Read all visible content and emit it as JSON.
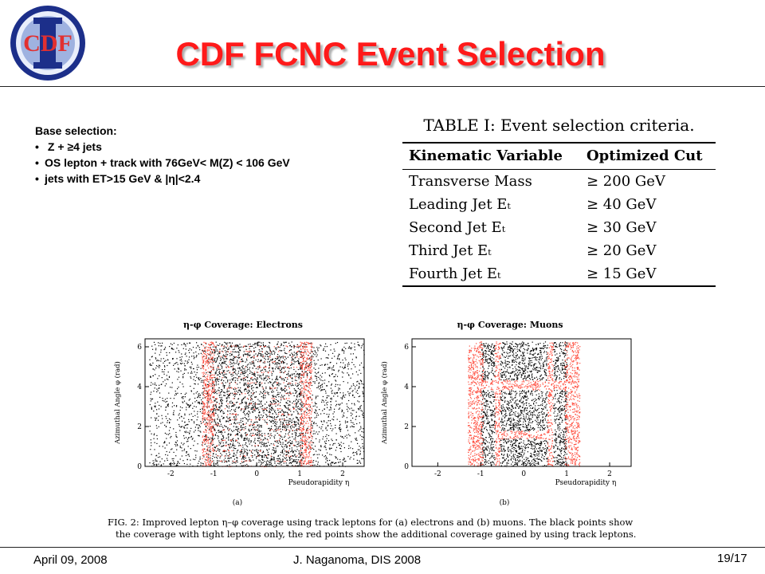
{
  "logo": {
    "text": "CDF"
  },
  "title": "CDF FCNC Event Selection",
  "base_selection": {
    "heading": "Base selection:",
    "items": [
      " Z +  ≥4 jets",
      "OS lepton + track with 76GeV< M(Z) < 106 GeV",
      "jets with ET>15 GeV & |η|<2.4"
    ]
  },
  "table": {
    "caption": "TABLE I: Event selection criteria.",
    "headers": [
      "Kinematic Variable",
      "Optimized Cut"
    ],
    "rows": [
      [
        "Transverse Mass",
        "≥ 200 GeV"
      ],
      [
        "Leading Jet Eₜ",
        "≥ 40 GeV"
      ],
      [
        "Second Jet Eₜ",
        "≥ 30 GeV"
      ],
      [
        "Third Jet Eₜ",
        "≥ 20 GeV"
      ],
      [
        "Fourth Jet Eₜ",
        "≥ 15 GeV"
      ]
    ]
  },
  "plots": {
    "electrons": {
      "title": "η-φ Coverage: Electrons",
      "ylabel": "Azimuthal Angle φ (rad)",
      "xlabel": "Pseudorapidity η",
      "sublabel": "(a)"
    },
    "muons": {
      "title": "η-φ Coverage: Muons",
      "ylabel": "Azimuthal Angle φ (rad)",
      "xlabel": "Pseudorapidity η",
      "sublabel": "(b)"
    },
    "xticks": [
      "-2",
      "-1",
      "0",
      "1",
      "2"
    ],
    "yticks": [
      "0",
      "2",
      "4",
      "6"
    ],
    "colors": {
      "tight": "#000000",
      "track": "#ff4a3a"
    }
  },
  "figure_caption": {
    "line1": "FIG. 2: Improved lepton η–φ coverage using track leptons for (a) electrons and (b) muons. The black points show",
    "line2": "the coverage with tight leptons only, the red points show the additional coverage gained by using track leptons."
  },
  "footer": {
    "date": "April 09, 2008",
    "author": "J. Naganoma, DIS 2008",
    "page": "19/17"
  }
}
